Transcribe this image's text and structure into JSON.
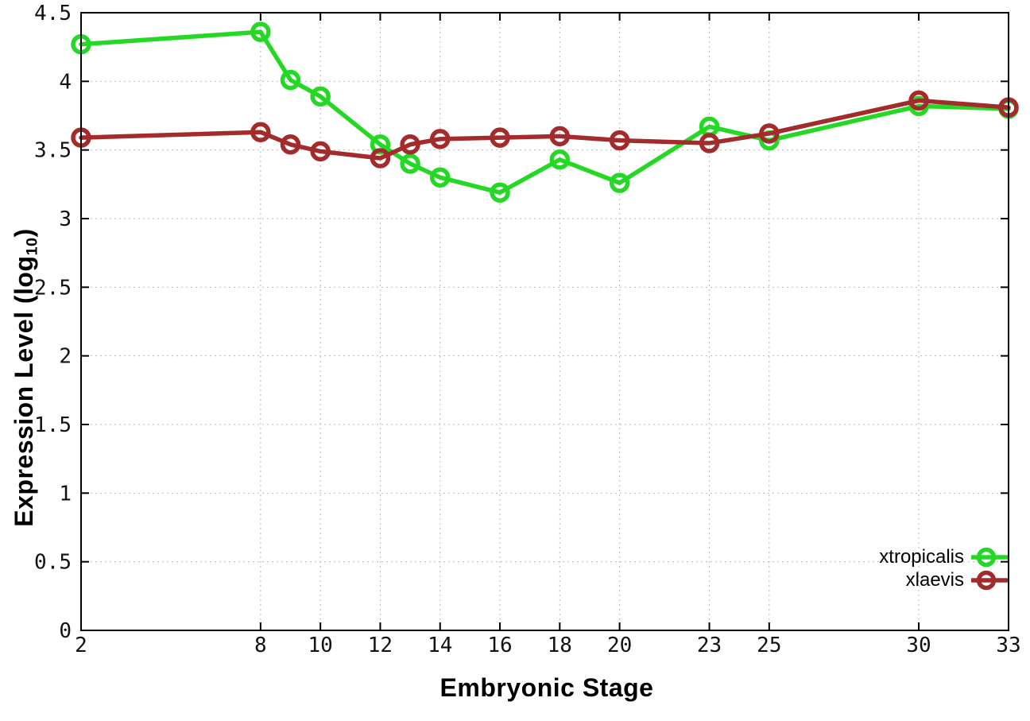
{
  "chart_data": {
    "type": "line",
    "title": "",
    "xlabel": "Embryonic Stage",
    "ylabel": "Expression Level (log10)",
    "ylabel_parts": {
      "main": "Expression Level (log",
      "sub": "10",
      "close": ")"
    },
    "xlim": [
      2,
      33
    ],
    "ylim": [
      0,
      4.5
    ],
    "xticks": [
      2,
      8,
      10,
      12,
      14,
      16,
      18,
      20,
      23,
      25,
      30,
      33
    ],
    "xtick_labels": [
      "2",
      "8",
      "10",
      "12",
      "14",
      "16",
      "18",
      "20",
      "23",
      "25",
      "30",
      "33"
    ],
    "yticks": [
      0,
      0.5,
      1,
      1.5,
      2,
      2.5,
      3,
      3.5,
      4,
      4.5
    ],
    "ytick_labels": [
      "0",
      "0.5",
      "1",
      "1.5",
      "2",
      "2.5",
      "3",
      "3.5",
      "4",
      "4.5"
    ],
    "grid": true,
    "legend_position": "inside-bottom-right",
    "marker": "open-circle",
    "x": [
      2,
      8,
      9,
      10,
      12,
      13,
      14,
      16,
      18,
      20,
      23,
      25,
      30,
      33
    ],
    "series": [
      {
        "name": "xtropicalis",
        "color": "#26d826",
        "values": [
          4.27,
          4.36,
          4.01,
          3.89,
          3.54,
          3.4,
          3.3,
          3.19,
          3.43,
          3.26,
          3.67,
          3.57,
          3.82,
          3.8
        ]
      },
      {
        "name": "xlaevis",
        "color": "#a32b2b",
        "values": [
          3.59,
          3.63,
          3.54,
          3.49,
          3.44,
          3.54,
          3.58,
          3.59,
          3.6,
          3.57,
          3.55,
          3.62,
          3.86,
          3.81
        ]
      }
    ],
    "colors": {
      "background": "#ffffff",
      "border": "#000000",
      "grid": "#b9b9b9",
      "tick_label": "#111111"
    }
  }
}
